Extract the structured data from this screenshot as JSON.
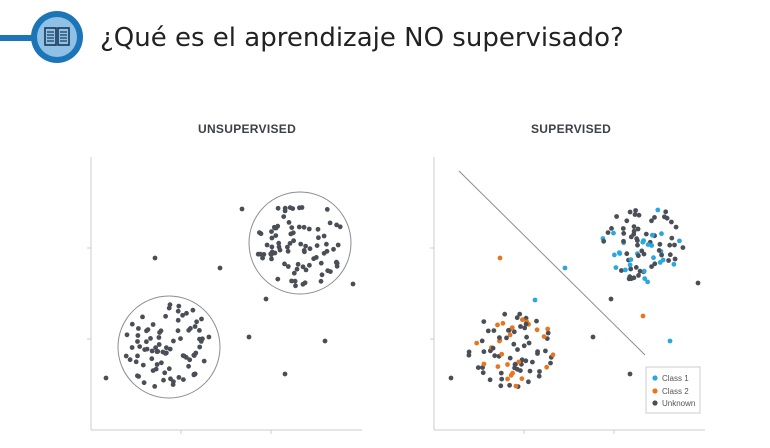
{
  "header": {
    "title": "¿Qué es el aprendizaje NO supervisado?",
    "icon": "book-icon"
  },
  "colors": {
    "accent": "#1b75b6",
    "unknown": "#4a4f57",
    "class1": "#2aa7df",
    "class2": "#e8761e"
  },
  "chart_data": [
    {
      "type": "scatter",
      "title": "UNSUPERVISED",
      "grid": false
    },
    {
      "type": "scatter",
      "title": "SUPERVISED",
      "grid": false,
      "legend": {
        "placement": "bottom-right",
        "entries": [
          {
            "label": "Class 1",
            "color": "#2aa7df"
          },
          {
            "label": "Class 2",
            "color": "#e8761e"
          },
          {
            "label": "Unknown",
            "color": "#4a4f57"
          }
        ]
      }
    }
  ]
}
